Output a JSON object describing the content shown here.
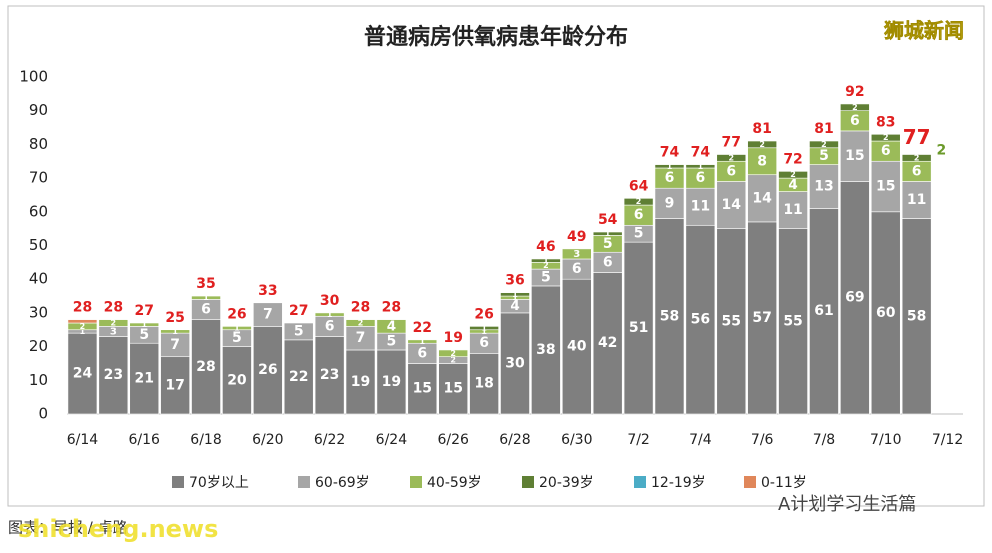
{
  "chart_data": {
    "type": "stacked_bar",
    "title": "普通病房供氧病患年龄分布",
    "categories": [
      "6/14",
      null,
      "6/16",
      null,
      "6/18",
      null,
      "6/20",
      null,
      "6/22",
      null,
      "6/24",
      null,
      "6/26",
      null,
      "6/28",
      null,
      "6/30",
      null,
      "7/2",
      null,
      "7/4",
      null,
      "7/6",
      null,
      "7/8",
      null,
      "7/10",
      null,
      "7/12"
    ],
    "series": [
      {
        "name": "70岁以上",
        "color": "#7f7f7f",
        "values": [
          24,
          23,
          21,
          17,
          28,
          20,
          26,
          22,
          23,
          19,
          19,
          15,
          15,
          18,
          30,
          38,
          40,
          42,
          51,
          58,
          56,
          55,
          57,
          55,
          61,
          69,
          60,
          58,
          null
        ]
      },
      {
        "name": "60-69岁",
        "color": "#a6a6a6",
        "values": [
          1,
          3,
          5,
          7,
          6,
          5,
          7,
          5,
          6,
          7,
          5,
          6,
          2,
          6,
          4,
          5,
          6,
          6,
          5,
          9,
          11,
          14,
          14,
          11,
          13,
          15,
          15,
          11,
          null
        ]
      },
      {
        "name": "40-59岁",
        "color": "#9bbb59",
        "values": [
          2,
          2,
          1,
          1,
          1,
          1,
          0,
          0,
          1,
          2,
          4,
          1,
          2,
          1,
          1,
          2,
          3,
          5,
          6,
          6,
          6,
          6,
          8,
          4,
          5,
          6,
          6,
          6,
          null
        ]
      },
      {
        "name": "20-39岁",
        "color": "#5f7f34",
        "values": [
          0,
          0,
          0,
          0,
          0,
          0,
          0,
          0,
          0,
          0,
          0,
          0,
          0,
          1,
          1,
          1,
          0,
          1,
          2,
          1,
          1,
          2,
          2,
          2,
          2,
          2,
          2,
          2,
          null
        ]
      },
      {
        "name": "12-19岁",
        "color": "#4bacc6",
        "values": [
          0,
          0,
          0,
          0,
          0,
          0,
          0,
          0,
          0,
          0,
          0,
          0,
          0,
          0,
          0,
          0,
          0,
          0,
          0,
          0,
          0,
          0,
          0,
          0,
          0,
          0,
          0,
          0,
          null
        ]
      },
      {
        "name": "0-11岁",
        "color": "#e0875a",
        "values": [
          1,
          0,
          0,
          0,
          0,
          0,
          0,
          0,
          0,
          0,
          0,
          0,
          0,
          0,
          0,
          0,
          0,
          0,
          0,
          0,
          0,
          0,
          0,
          0,
          0,
          0,
          0,
          0,
          null
        ]
      }
    ],
    "totals": [
      28,
      28,
      27,
      25,
      35,
      26,
      33,
      27,
      30,
      28,
      28,
      22,
      19,
      26,
      36,
      46,
      49,
      54,
      64,
      74,
      74,
      77,
      81,
      72,
      81,
      92,
      83,
      77,
      null
    ],
    "annotation": "2",
    "ylim": [
      0,
      100
    ],
    "yticks": [
      0,
      10,
      20,
      30,
      40,
      50,
      60,
      70,
      80,
      90,
      100
    ]
  },
  "watermark_top": "狮城新闻",
  "source": "图表：早报 / 卓路",
  "watermark_site": "shicheng.news",
  "watermark_bottom": "A计划学习生活篇"
}
